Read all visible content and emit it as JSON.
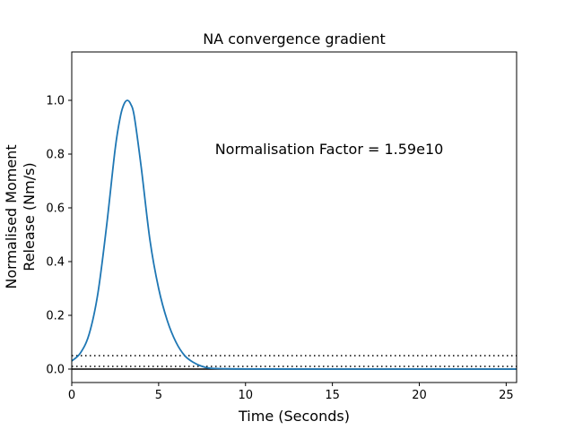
{
  "chart_data": {
    "type": "line",
    "title": "NA convergence gradient",
    "xlabel": "Time (Seconds)",
    "ylabel_line1": "Normalised Moment",
    "ylabel_line2": "Release (Nm/s)",
    "annotation": "Normalisation Factor = 1.59e10",
    "annotation_position": "upper-right",
    "xlim": [
      0,
      25.6
    ],
    "ylim": [
      -0.05,
      1.18
    ],
    "grid": false,
    "legend": "none",
    "x_ticks": [
      0,
      5,
      10,
      15,
      20,
      25
    ],
    "x_tick_labels": [
      "0",
      "5",
      "10",
      "15",
      "20",
      "25"
    ],
    "y_ticks": [
      0.0,
      0.2,
      0.4,
      0.6,
      0.8,
      1.0
    ],
    "y_tick_labels": [
      "0.0",
      "0.2",
      "0.4",
      "0.6",
      "0.8",
      "1.0"
    ],
    "series": [
      {
        "style": "solid",
        "color": "#1f77b4",
        "x": [
          0,
          0.5,
          1.0,
          1.5,
          2.0,
          2.5,
          2.8,
          3.0,
          3.2,
          3.4,
          3.6,
          4.0,
          4.5,
          5.0,
          5.5,
          6.0,
          6.5,
          7.0,
          7.5,
          8.0,
          9.0,
          10.0,
          12.0,
          15.0,
          20.0,
          25.6
        ],
        "y": [
          0.03,
          0.06,
          0.13,
          0.28,
          0.53,
          0.82,
          0.94,
          0.985,
          1.0,
          0.985,
          0.94,
          0.75,
          0.48,
          0.3,
          0.18,
          0.1,
          0.05,
          0.025,
          0.01,
          0.003,
          0.001,
          0.0005,
          0.0002,
          0.0001,
          0.0,
          0.0
        ]
      }
    ],
    "reference_lines": [
      {
        "y": 0.05,
        "style": "dotted",
        "color": "#000000"
      },
      {
        "y": 0.01,
        "style": "dotted",
        "color": "#000000"
      },
      {
        "y": 0.0,
        "style": "solid",
        "color": "#000000"
      }
    ]
  }
}
